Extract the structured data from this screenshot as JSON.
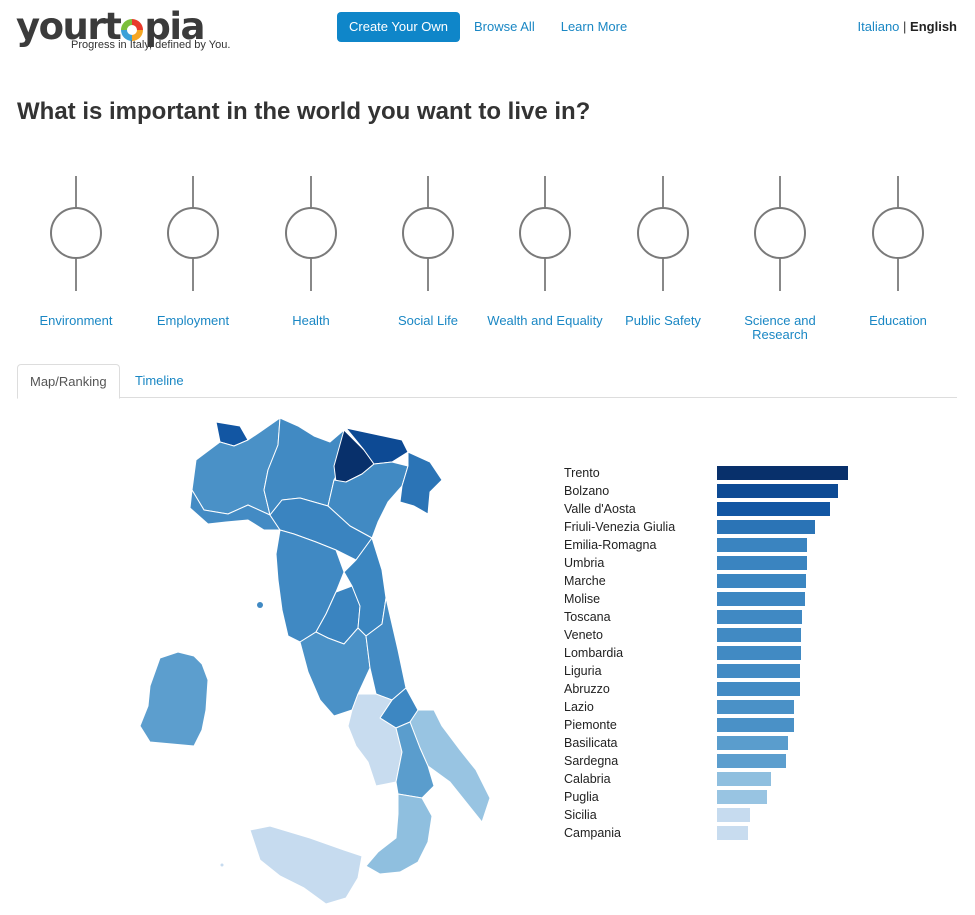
{
  "header": {
    "logo_text_before": "yourt",
    "logo_text_after": "pia",
    "tagline": "Progress in Italy, defined by You.",
    "nav": {
      "create": "Create Your Own",
      "browse": "Browse All",
      "learn": "Learn More"
    },
    "lang": {
      "italian": "Italiano",
      "separator": "|",
      "english": "English"
    }
  },
  "question": "What is important in the world you want to live in?",
  "sliders": [
    {
      "label": "Environment"
    },
    {
      "label": "Employment"
    },
    {
      "label": "Health"
    },
    {
      "label": "Social Life"
    },
    {
      "label": "Wealth and Equality"
    },
    {
      "label": "Public Safety"
    },
    {
      "label": "Science and Research"
    },
    {
      "label": "Education"
    }
  ],
  "tabs": {
    "map": "Map/Ranking",
    "timeline": "Timeline"
  },
  "ranking": [
    {
      "name": "Trento",
      "value": 1.0,
      "color": "#08306b"
    },
    {
      "name": "Bolzano",
      "value": 0.92,
      "color": "#0d4a94"
    },
    {
      "name": "Valle d'Aosta",
      "value": 0.86,
      "color": "#1256a3"
    },
    {
      "name": "Friuli-Venezia Giulia",
      "value": 0.75,
      "color": "#2b74b6"
    },
    {
      "name": "Emilia-Romagna",
      "value": 0.69,
      "color": "#3a84c0"
    },
    {
      "name": "Umbria",
      "value": 0.69,
      "color": "#3a84c0"
    },
    {
      "name": "Marche",
      "value": 0.68,
      "color": "#3b86c1"
    },
    {
      "name": "Molise",
      "value": 0.67,
      "color": "#3d87c2"
    },
    {
      "name": "Toscana",
      "value": 0.65,
      "color": "#4089c3"
    },
    {
      "name": "Veneto",
      "value": 0.64,
      "color": "#418ac3"
    },
    {
      "name": "Lombardia",
      "value": 0.64,
      "color": "#418ac3"
    },
    {
      "name": "Liguria",
      "value": 0.63,
      "color": "#438bc4"
    },
    {
      "name": "Abruzzo",
      "value": 0.63,
      "color": "#438bc4"
    },
    {
      "name": "Lazio",
      "value": 0.59,
      "color": "#4a91c7"
    },
    {
      "name": "Piemonte",
      "value": 0.59,
      "color": "#4a91c7"
    },
    {
      "name": "Basilicata",
      "value": 0.54,
      "color": "#5a9dcd"
    },
    {
      "name": "Sardegna",
      "value": 0.53,
      "color": "#5c9ece"
    },
    {
      "name": "Calabria",
      "value": 0.41,
      "color": "#8fbfdf"
    },
    {
      "name": "Puglia",
      "value": 0.38,
      "color": "#98c4e2"
    },
    {
      "name": "Sicilia",
      "value": 0.25,
      "color": "#c6dbef"
    },
    {
      "name": "Campania",
      "value": 0.24,
      "color": "#c8dcef"
    }
  ],
  "colors": {
    "accent": "#0f86c9",
    "link": "#1a87c4"
  }
}
